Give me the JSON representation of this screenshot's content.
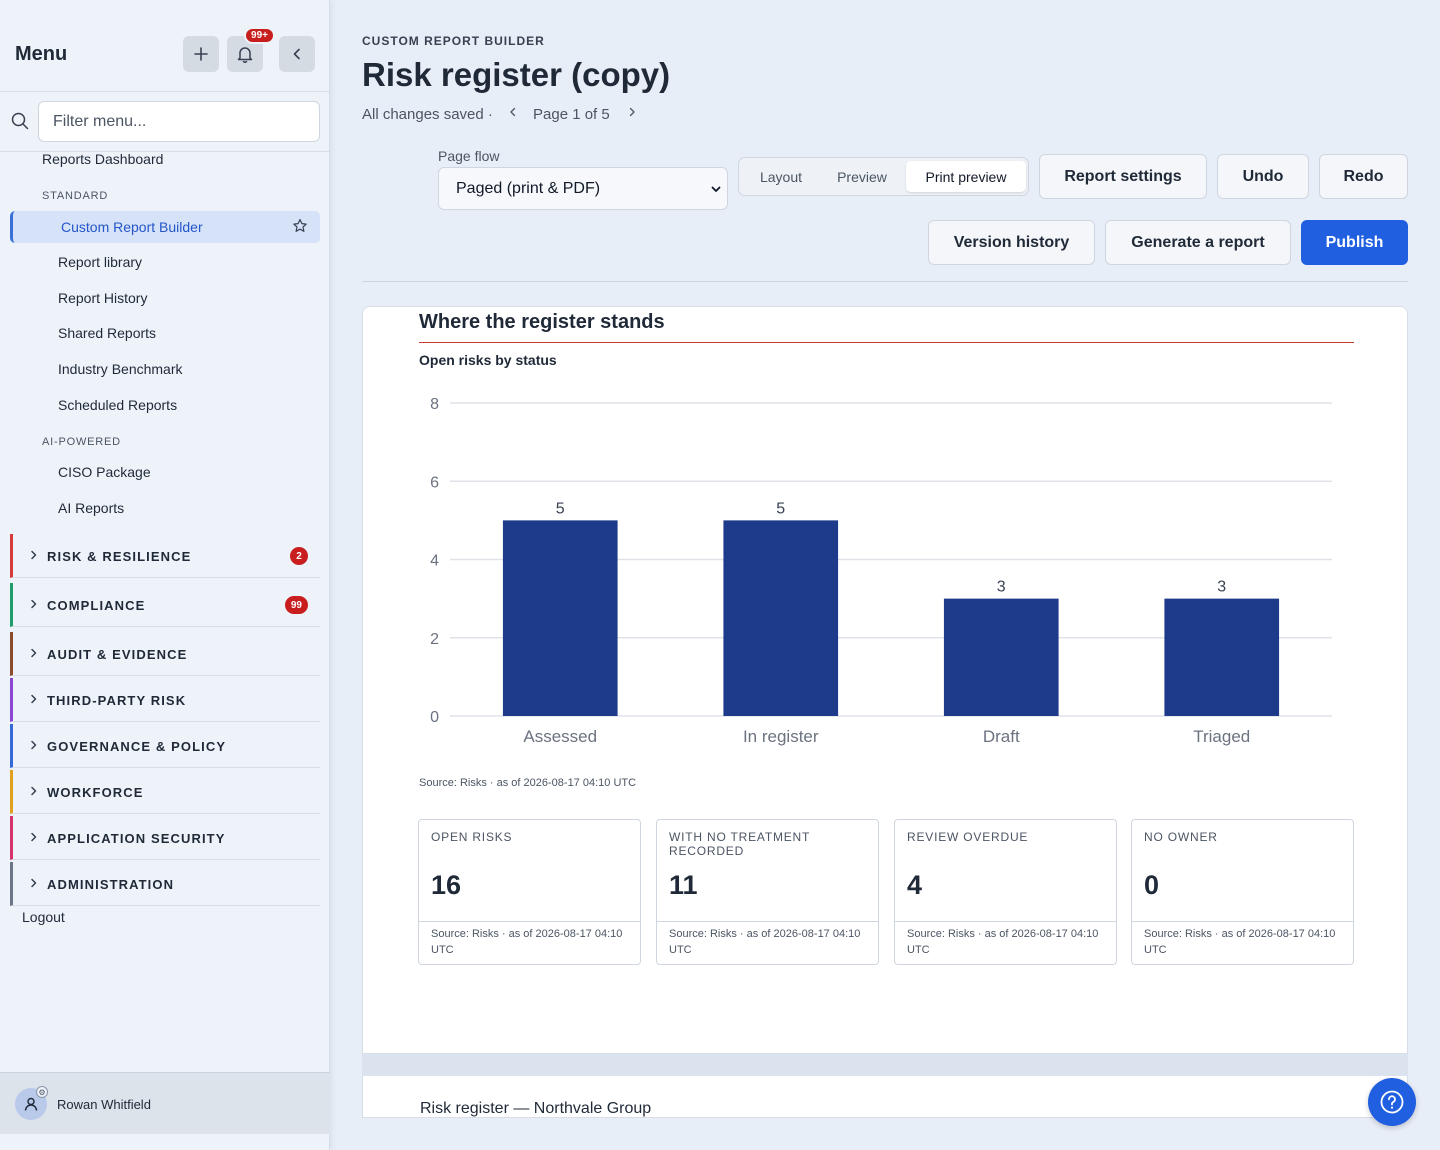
{
  "sidebar": {
    "title": "Menu",
    "notifications_badge": "99+",
    "filter_placeholder": "Filter menu...",
    "top_link": "Reports Dashboard",
    "section_standard": "STANDARD",
    "active_item": "Custom Report Builder",
    "standard_items": [
      "Report library",
      "Report History",
      "Shared Reports",
      "Industry Benchmark",
      "Scheduled Reports"
    ],
    "section_ai": "AI-POWERED",
    "ai_items": [
      "CISO Package",
      "AI Reports"
    ],
    "groups": [
      {
        "label": "RISK & RESILIENCE",
        "badge": "2",
        "color": "#d63b3b"
      },
      {
        "label": "COMPLIANCE",
        "badge": "99",
        "color": "#1f9d6b"
      },
      {
        "label": "AUDIT & EVIDENCE",
        "badge": "",
        "color": "#8a4b2e"
      },
      {
        "label": "THIRD-PARTY RISK",
        "badge": "",
        "color": "#8b46d6"
      },
      {
        "label": "GOVERNANCE & POLICY",
        "badge": "",
        "color": "#3569d8"
      },
      {
        "label": "WORKFORCE",
        "badge": "",
        "color": "#e0a020"
      },
      {
        "label": "APPLICATION SECURITY",
        "badge": "",
        "color": "#d6336c"
      },
      {
        "label": "ADMINISTRATION",
        "badge": "",
        "color": "#6b7686"
      }
    ],
    "logout": "Logout",
    "user_name": "Rowan Whitfield"
  },
  "header": {
    "breadcrumb": "CUSTOM REPORT BUILDER",
    "title": "Risk register (copy)",
    "status": "All changes saved ·",
    "page_indicator": "Page 1 of 5"
  },
  "toolbar": {
    "page_flow_label": "Page flow",
    "page_flow_value": "Paged (print & PDF)",
    "view_modes": [
      "Layout",
      "Preview",
      "Print preview"
    ],
    "active_view": "Print preview",
    "report_settings": "Report settings",
    "undo": "Undo",
    "redo": "Redo",
    "version_history": "Version history",
    "generate_report": "Generate a report",
    "publish": "Publish"
  },
  "report": {
    "section_title": "Where the register stands",
    "chart_source": "Source: Risks · as of 2026-08-17 04:10 UTC",
    "kpis": [
      {
        "label": "OPEN RISKS",
        "value": "16",
        "source": "Source: Risks · as of 2026-08-17 04:10 UTC"
      },
      {
        "label": "WITH NO TREATMENT RECORDED",
        "value": "11",
        "source": "Source: Risks · as of 2026-08-17 04:10 UTC"
      },
      {
        "label": "REVIEW OVERDUE",
        "value": "4",
        "source": "Source: Risks · as of 2026-08-17 04:10 UTC"
      },
      {
        "label": "NO OWNER",
        "value": "0",
        "source": "Source: Risks · as of 2026-08-17 04:10 UTC"
      }
    ],
    "next_page_title": "Risk register — Northvale Group"
  },
  "chart_data": {
    "type": "bar",
    "title": "Open risks by status",
    "categories": [
      "Assessed",
      "In register",
      "Draft",
      "Triaged"
    ],
    "values": [
      5,
      5,
      3,
      3
    ],
    "ylim": [
      0,
      8
    ],
    "yticks": [
      0,
      2,
      4,
      6,
      8
    ],
    "grid": true,
    "bar_color": "#1e3a8a"
  }
}
